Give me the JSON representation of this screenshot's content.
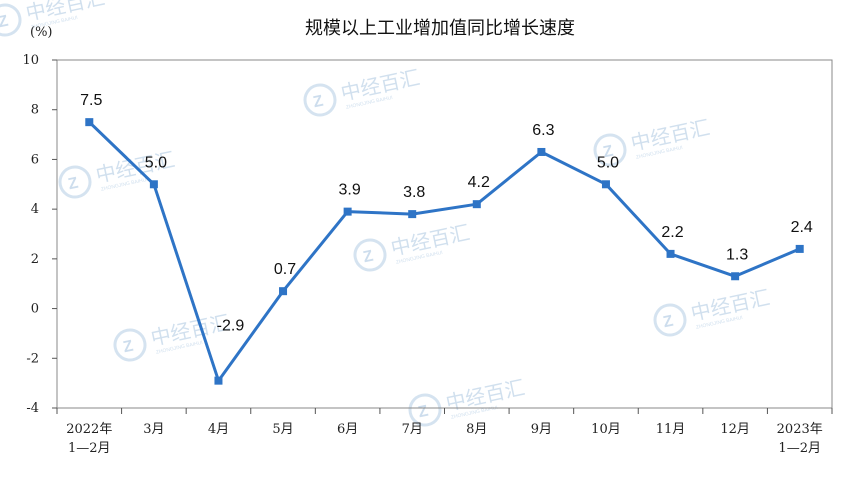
{
  "chart_data": {
    "type": "line",
    "title": "规模以上工业增加值同比增长速度",
    "unit_label": "(%)",
    "categories": [
      [
        "2022年",
        "1—2月"
      ],
      [
        "3月"
      ],
      [
        "4月"
      ],
      [
        "5月"
      ],
      [
        "6月"
      ],
      [
        "7月"
      ],
      [
        "8月"
      ],
      [
        "9月"
      ],
      [
        "10月"
      ],
      [
        "11月"
      ],
      [
        "12月"
      ],
      [
        "2023年",
        "1—2月"
      ]
    ],
    "series": [
      {
        "values": [
          7.5,
          5.0,
          -2.9,
          0.7,
          3.9,
          3.8,
          4.2,
          6.3,
          5.0,
          2.2,
          1.3,
          2.4
        ],
        "data_labels": [
          "7.5",
          "5.0",
          "-2.9",
          "0.7",
          "3.9",
          "3.8",
          "4.2",
          "6.3",
          "5.0",
          "2.2",
          "1.3",
          "2.4"
        ],
        "color": "#2e74c6"
      }
    ],
    "ylim": [
      -4,
      10
    ],
    "yticks": [
      "10",
      "8",
      "6",
      "4",
      "2",
      "0",
      "-2",
      "-4"
    ],
    "grid": false,
    "legend": "none"
  },
  "watermark": {
    "text": "中经百汇",
    "subtext": "ZHONGJING BAIHUI",
    "color": "#b9d0e6"
  }
}
